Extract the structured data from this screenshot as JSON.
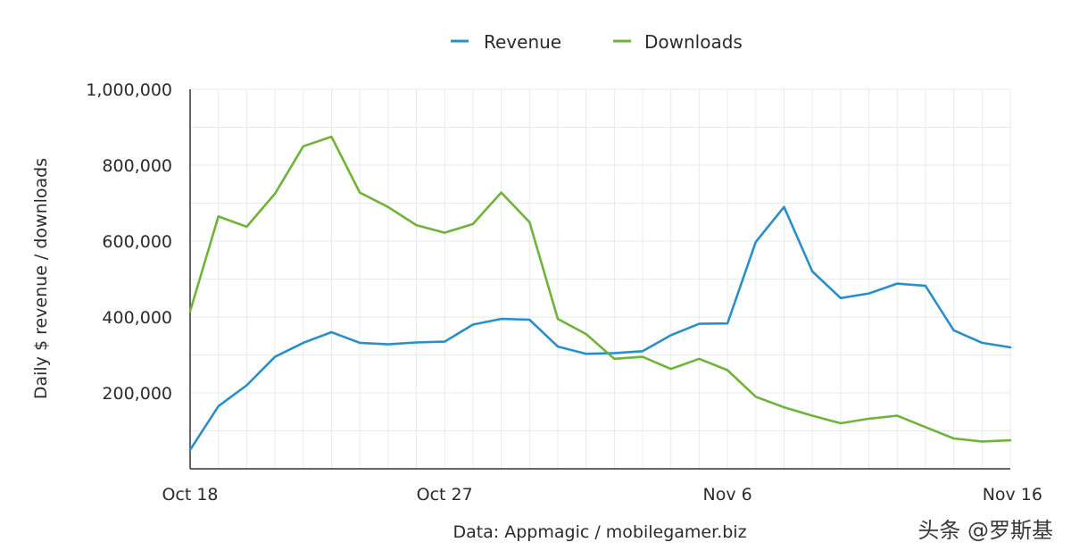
{
  "chart_data": {
    "type": "line",
    "title": "",
    "xlabel": "",
    "ylabel": "Daily $ revenue / downloads",
    "ylim": [
      0,
      1000000
    ],
    "yticks": [
      200000,
      400000,
      600000,
      800000,
      1000000
    ],
    "ytick_labels": [
      "200,000",
      "400,000",
      "600,000",
      "800,000",
      "1,000,000"
    ],
    "x_day_start": 0,
    "x_day_end": 29,
    "xticks": [
      0,
      9,
      19,
      29
    ],
    "xtick_labels": [
      "Oct 18",
      "Oct 27",
      "Nov 6",
      "Nov 16"
    ],
    "legend_position": "top-center",
    "grid": true,
    "colors": {
      "Revenue": "#2a8fc9",
      "Downloads": "#6fb33a",
      "grid": "#e7eaed",
      "axis": "#333333"
    },
    "series": [
      {
        "name": "Revenue",
        "x": [
          0,
          1,
          2,
          3,
          4,
          5,
          6,
          7,
          8,
          9,
          10,
          11,
          12,
          13,
          14,
          15,
          16,
          17,
          18,
          19,
          20,
          21,
          22,
          23,
          24,
          25,
          26,
          27,
          28,
          29
        ],
        "values": [
          50000,
          165000,
          220000,
          295000,
          332000,
          360000,
          332000,
          328000,
          333000,
          335000,
          380000,
          395000,
          393000,
          322000,
          303000,
          305000,
          310000,
          352000,
          382000,
          383000,
          598000,
          690000,
          520000,
          450000,
          462000,
          488000,
          482000,
          365000,
          332000,
          320000
        ]
      },
      {
        "name": "Downloads",
        "x": [
          0,
          1,
          2,
          3,
          4,
          5,
          6,
          7,
          8,
          9,
          10,
          11,
          12,
          13,
          14,
          15,
          16,
          17,
          18,
          19,
          20,
          21,
          22,
          23,
          24,
          25,
          26,
          27,
          28,
          29
        ],
        "values": [
          415000,
          665000,
          638000,
          725000,
          850000,
          875000,
          728000,
          690000,
          642000,
          622000,
          645000,
          728000,
          650000,
          395000,
          355000,
          290000,
          295000,
          263000,
          290000,
          260000,
          190000,
          162000,
          140000,
          120000,
          132000,
          140000,
          110000,
          80000,
          72000,
          75000
        ]
      }
    ]
  },
  "source": "Data: Appmagic / mobilegamer.biz",
  "watermark": "头条 @罗斯基"
}
